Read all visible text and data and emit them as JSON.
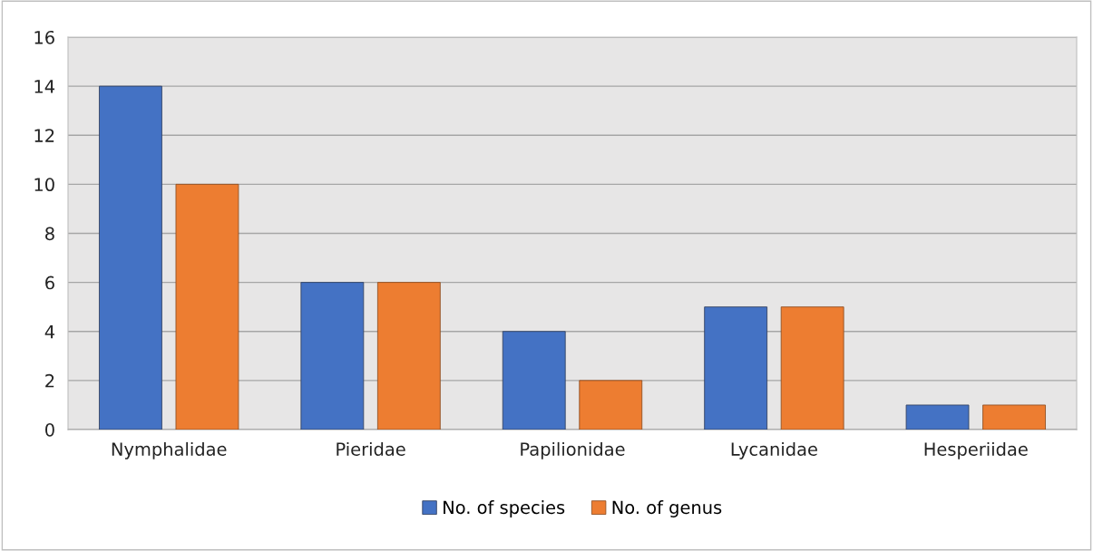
{
  "chart_data": {
    "type": "bar",
    "categories": [
      "Nymphalidae",
      "Pieridae",
      "Papilionidae",
      "Lycanidae",
      "Hesperiidae"
    ],
    "series": [
      {
        "name": "No. of species",
        "color": "#4472c4",
        "values": [
          14,
          6,
          4,
          5,
          1
        ]
      },
      {
        "name": "No. of genus",
        "color": "#ed7d31",
        "values": [
          10,
          6,
          2,
          5,
          1
        ]
      }
    ],
    "ylim": [
      0,
      16
    ],
    "yticks": [
      0,
      2,
      4,
      6,
      8,
      10,
      12,
      14,
      16
    ],
    "grid": "y",
    "legend": "bottom"
  }
}
